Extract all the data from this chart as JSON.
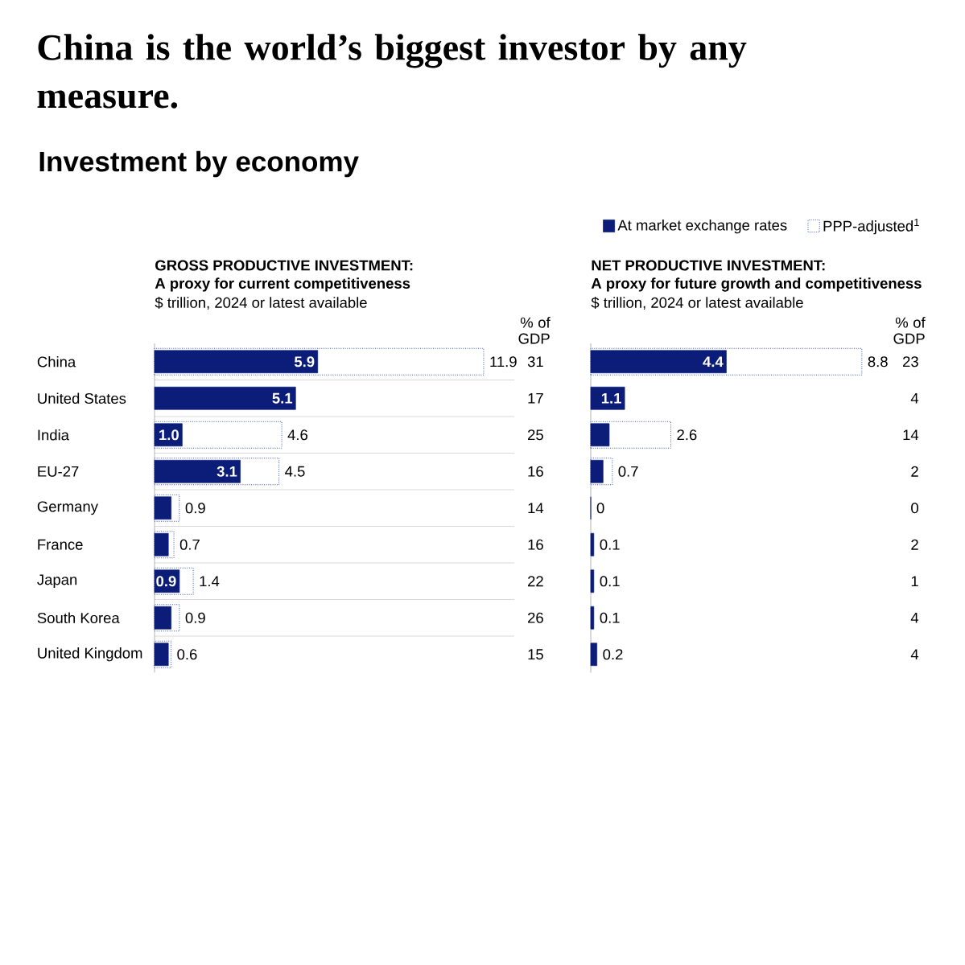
{
  "chart_data": [
    {
      "type": "other",
      "title": "China is the world’s biggest investor by any measure.",
      "subtitle": "Investment by economy"
    },
    {
      "type": "bar",
      "orientation": "horizontal",
      "title": "GROSS PRODUCTIVE INVESTMENT:",
      "subtitle": "A proxy for current competitiveness",
      "xlabel": "$ trillion, 2024 or latest available",
      "categories": [
        "China",
        "United States",
        "India",
        "EU-27",
        "Germany",
        "France",
        "Japan",
        "South Korea",
        "United Kingdom"
      ],
      "grid": "y",
      "tick_labels": "y",
      "series": [
        {
          "color": "#0b1d78",
          "values": [
            5.9,
            5.1,
            1.0,
            3.1,
            0.6,
            0.5,
            0.9,
            0.6,
            0.5
          ],
          "value_labels": [
            "5.9",
            "5.1",
            "1.0",
            "3.1",
            null,
            null,
            "0.9",
            null,
            null
          ]
        },
        {
          "color": "#3a56a8",
          "line_style": "dotted",
          "values": [
            11.9,
            null,
            4.6,
            4.5,
            0.9,
            0.7,
            1.4,
            0.9,
            0.6
          ],
          "value_labels": [
            "11.9",
            null,
            "4.6",
            "4.5",
            "0.9",
            "0.7",
            "1.4",
            "0.9",
            "0.6"
          ]
        }
      ],
      "annotations": [
        "% of GDP",
        "31",
        "17",
        "25",
        "16",
        "14",
        "16",
        "22",
        "26",
        "15"
      ]
    },
    {
      "type": "bar",
      "orientation": "horizontal",
      "title": "NET PRODUCTIVE INVESTMENT:",
      "subtitle": "A proxy for future growth and competitiveness",
      "xlabel": "$ trillion, 2024 or latest available",
      "categories": [
        null,
        null,
        null,
        null,
        null,
        null,
        null,
        null,
        null
      ],
      "grid": "y",
      "tick_labels": false,
      "legend": "top right",
      "series": [
        {
          "name": "At market exchange rates",
          "color": "#0b1d78",
          "values": [
            4.4,
            1.1,
            0.6,
            0.4,
            0,
            0.1,
            0.1,
            0.1,
            0.2
          ],
          "value_labels": [
            "4.4",
            "1.1",
            null,
            null,
            "0",
            "0.1",
            "0.1",
            "0.1",
            "0.2"
          ]
        },
        {
          "name": "PPP-adjusted$^{1}$",
          "color": "#3a56a8",
          "line_style": "dotted",
          "values": [
            8.8,
            null,
            2.6,
            0.7,
            null,
            null,
            null,
            null,
            null
          ],
          "value_labels": [
            "8.8",
            null,
            "2.6",
            "0.7",
            null,
            null,
            null,
            null,
            null
          ]
        }
      ],
      "annotations": [
        "% of GDP",
        "23",
        "4",
        "14",
        "2",
        "0",
        "2",
        "1",
        "4",
        "4"
      ]
    }
  ]
}
